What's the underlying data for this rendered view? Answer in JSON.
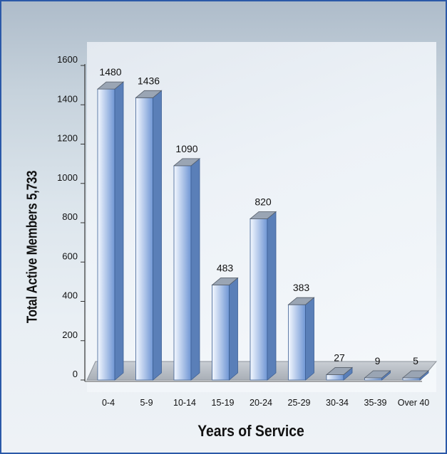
{
  "chart_data": {
    "type": "bar",
    "title": "",
    "ylabel": "Total Active Members 5,733",
    "xlabel": "Years of Service",
    "categories": [
      "0-4",
      "5-9",
      "10-14",
      "15-19",
      "20-24",
      "25-29",
      "30-34",
      "35-39",
      "Over 40"
    ],
    "values": [
      1480,
      1436,
      1090,
      483,
      820,
      383,
      27,
      9,
      5
    ],
    "yticks": [
      0,
      200,
      400,
      600,
      800,
      1000,
      1200,
      1400,
      1600
    ],
    "ylim": [
      0,
      1600
    ],
    "grid": false,
    "style": "3d-bar",
    "colors": {
      "frame_border": "#2b59a8",
      "bar_light": "#f4f8ff",
      "bar_dark": "#6f96d4",
      "bar_side": "#5a7fb8",
      "bar_top": "#9aa5b4",
      "floor": "#b9bfc6"
    }
  }
}
